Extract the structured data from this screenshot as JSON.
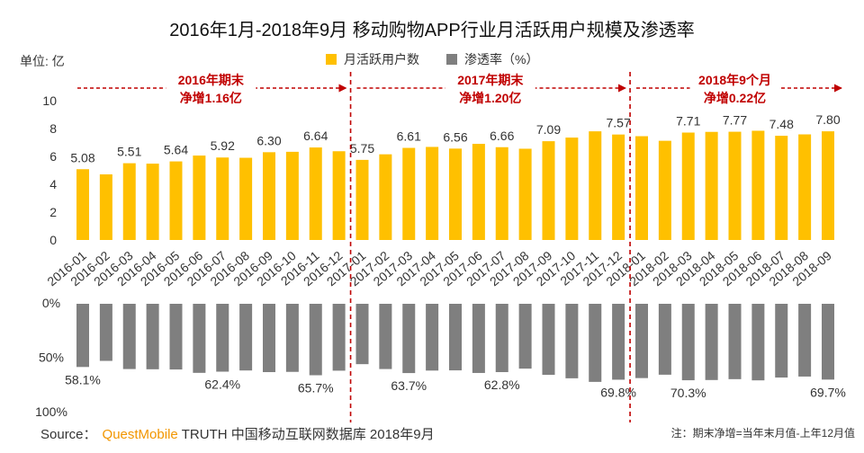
{
  "colors": {
    "mau_bar": "#FFC000",
    "penetration_bar": "#7F7F7F",
    "annotation": "#C00000",
    "brand": "#F29600"
  },
  "source": {
    "prefix": "Source：",
    "brand": "QuestMobile",
    "rest": "TRUTH 中国移动互联网数据库 2018年9月"
  },
  "note": "注：期末净增=当年末月值-上年12月值",
  "chart_data": {
    "type": "bar",
    "title": "2016年1月-2018年9月 移动购物APP行业月活跃用户规模及渗透率",
    "legend_position": "top-center",
    "grid": false,
    "categories": [
      "2016-01",
      "2016-02",
      "2016-03",
      "2016-04",
      "2016-05",
      "2016-06",
      "2016-07",
      "2016-08",
      "2016-09",
      "2016-10",
      "2016-11",
      "2016-12",
      "2017-01",
      "2017-02",
      "2017-03",
      "2017-04",
      "2017-05",
      "2017-06",
      "2017-07",
      "2017-08",
      "2017-09",
      "2017-10",
      "2017-11",
      "2017-12",
      "2018-01",
      "2018-02",
      "2018-03",
      "2018-04",
      "2018-05",
      "2018-06",
      "2018-07",
      "2018-08",
      "2018-09"
    ],
    "panels": [
      {
        "unit": "单位: 亿",
        "ylim": [
          0,
          10
        ],
        "yticks": [
          0,
          2,
          4,
          6,
          8,
          10
        ],
        "ytick_labels": [
          "0",
          "2",
          "4",
          "6",
          "8",
          "10"
        ],
        "orientation": "upward",
        "series": [
          {
            "name": "月活跃用户数",
            "values": [
              5.08,
              4.71,
              5.51,
              5.48,
              5.64,
              6.06,
              5.92,
              5.9,
              6.3,
              6.33,
              6.64,
              6.37,
              5.75,
              6.15,
              6.61,
              6.68,
              6.56,
              6.9,
              6.66,
              6.55,
              7.09,
              7.35,
              7.8,
              7.57,
              7.45,
              7.12,
              7.71,
              7.76,
              7.77,
              7.84,
              7.48,
              7.58,
              7.8
            ],
            "data_labels": [
              "5.08",
              null,
              "5.51",
              null,
              "5.64",
              null,
              "5.92",
              null,
              "6.30",
              null,
              "6.64",
              null,
              "5.75",
              null,
              "6.61",
              null,
              "6.56",
              null,
              "6.66",
              null,
              "7.09",
              null,
              null,
              "7.57",
              null,
              null,
              "7.71",
              null,
              "7.77",
              null,
              "7.48",
              null,
              "7.80"
            ]
          }
        ]
      },
      {
        "ylim": [
          0,
          100
        ],
        "yticks": [
          0,
          50,
          100
        ],
        "ytick_labels": [
          "0%",
          "50%",
          "100%"
        ],
        "orientation": "downward",
        "series": [
          {
            "name": "渗透率（%）",
            "values": [
              58.1,
              52.5,
              60.0,
              60.2,
              60.4,
              63.5,
              62.4,
              61.3,
              62.8,
              62.6,
              65.7,
              61.5,
              55.5,
              60.0,
              63.7,
              61.4,
              61.2,
              63.6,
              62.8,
              59.6,
              65.3,
              68.5,
              71.8,
              69.8,
              68.3,
              65.2,
              70.3,
              70.1,
              69.3,
              70.4,
              67.8,
              66.9,
              69.7
            ],
            "data_labels": [
              "58.1%",
              null,
              null,
              null,
              null,
              null,
              "62.4%",
              null,
              null,
              null,
              "65.7%",
              null,
              null,
              null,
              "63.7%",
              null,
              null,
              null,
              "62.8%",
              null,
              null,
              null,
              null,
              "69.8%",
              null,
              null,
              "70.3%",
              null,
              null,
              null,
              null,
              null,
              "69.7%"
            ]
          }
        ]
      }
    ],
    "period_dividers_after": [
      "2016-12",
      "2017-12"
    ],
    "period_annotations": [
      {
        "from": "2016-01",
        "to": "2016-12",
        "line1": "2016年期末",
        "line2": "净增1.16亿"
      },
      {
        "from": "2017-01",
        "to": "2017-12",
        "line1": "2017年期末",
        "line2": "净增1.20亿"
      },
      {
        "from": "2018-01",
        "to": "2018-09",
        "line1": "2018年9个月",
        "line2": "净增0.22亿"
      }
    ]
  }
}
